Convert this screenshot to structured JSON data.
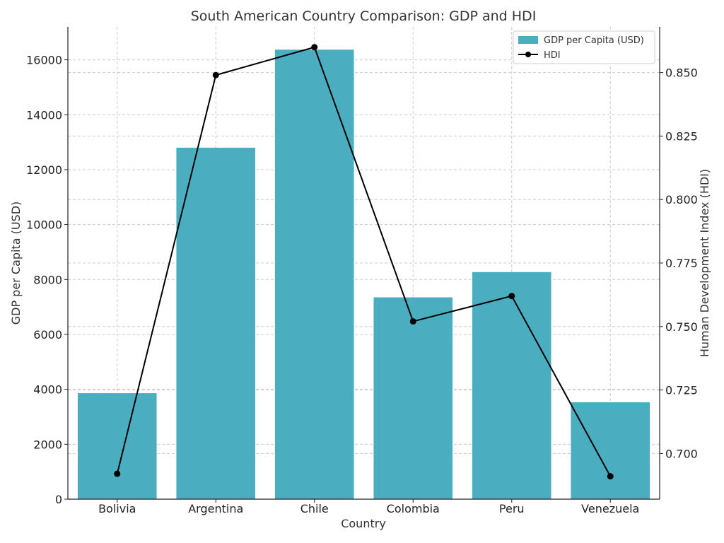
{
  "chart_data": {
    "type": "bar",
    "title": "South American Country Comparison: GDP and HDI",
    "xlabel": "Country",
    "ylabel": "GDP per Capita (USD)",
    "y2label": "Human Development Index (HDI)",
    "categories": [
      "Bolivia",
      "Argentina",
      "Chile",
      "Colombia",
      "Peru",
      "Venezuela"
    ],
    "ylim": [
      0,
      17200
    ],
    "yticks": [
      0,
      2000,
      4000,
      6000,
      8000,
      10000,
      12000,
      14000,
      16000
    ],
    "y2lim": [
      0.682,
      0.868
    ],
    "y2ticks": [
      0.7,
      0.725,
      0.75,
      0.775,
      0.8,
      0.825,
      0.85
    ],
    "y2tick_labels": [
      "0.700",
      "0.725",
      "0.750",
      "0.775",
      "0.800",
      "0.825",
      "0.850"
    ],
    "grid": true,
    "legend_position": "top-right",
    "series": [
      {
        "name": "GDP per Capita (USD)",
        "type": "bar",
        "axis": "left",
        "color": "#4badc0",
        "values": [
          3860,
          12800,
          16370,
          7350,
          8270,
          3530
        ]
      },
      {
        "name": "HDI",
        "type": "line",
        "axis": "right",
        "color": "#000000",
        "marker": "circle",
        "values": [
          0.692,
          0.849,
          0.86,
          0.752,
          0.762,
          0.691
        ]
      }
    ]
  }
}
